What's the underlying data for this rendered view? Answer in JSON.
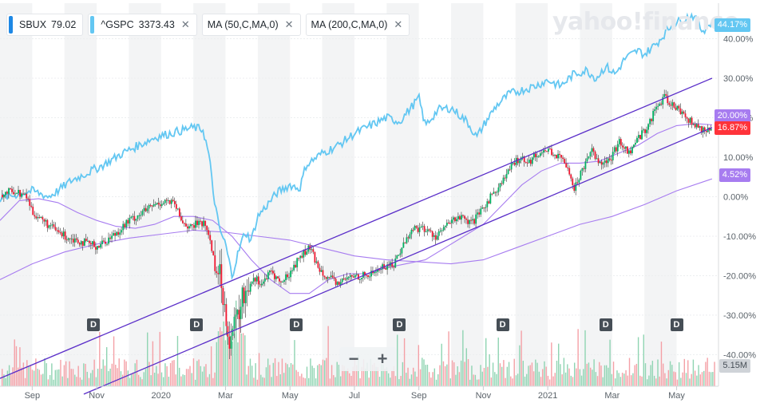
{
  "legend": [
    {
      "symbol": "SBUX",
      "value": "79.02",
      "color": "#1e88e5",
      "closable": false
    },
    {
      "symbol": "^GSPC",
      "value": "3373.43",
      "color": "#63c7f2",
      "closable": true
    },
    {
      "symbol": "MA (50,C,MA,0)",
      "value": "",
      "color": "",
      "closable": true
    },
    {
      "symbol": "MA (200,C,MA,0)",
      "value": "",
      "color": "",
      "closable": true
    }
  ],
  "watermark": "yahoo!finance",
  "badges": {
    "gspc": {
      "text": "44.17%",
      "color": "#63c7f2"
    },
    "sbux": {
      "text": "16.87%",
      "color": "#ff333a"
    },
    "ma_value_top": {
      "text": "20.00%",
      "color": "#a77cf0"
    },
    "ma200": {
      "text": "4.52%",
      "color": "#a77cf0"
    },
    "volume": {
      "text": "5.15M",
      "color": "#cfd3d8"
    }
  },
  "zoom": {
    "minus": "−",
    "plus": "+"
  },
  "dividend_marker": "D",
  "chart_data": {
    "type": "candlestick-percent-comparison",
    "yaxis": {
      "unit": "%",
      "ticks": [
        40,
        30,
        20,
        10,
        0,
        -10,
        -20,
        -30,
        -40
      ],
      "tick_labels": [
        "40.00%",
        "30.00%",
        "20.00%",
        "10.00%",
        "0.00%",
        "-10.00%",
        "-20.00%",
        "-30.00%",
        "-40.00%"
      ],
      "ylim": [
        -48,
        49
      ]
    },
    "xaxis": {
      "tick_labels": [
        "Sep",
        "Nov",
        "2020",
        "Mar",
        "May",
        "Jul",
        "Sep",
        "Nov",
        "2021",
        "Mar",
        "May"
      ],
      "tick_months": [
        1,
        3,
        5,
        7,
        9,
        11,
        13,
        15,
        17,
        19,
        21
      ],
      "range_months": [
        0,
        22.3
      ]
    },
    "shaded_bands_months": [
      [
        0,
        1
      ],
      [
        2,
        3
      ],
      [
        4,
        5
      ],
      [
        6,
        7
      ],
      [
        8,
        9
      ],
      [
        10,
        11
      ],
      [
        12,
        13
      ],
      [
        14,
        15
      ],
      [
        16,
        17
      ],
      [
        18,
        19
      ],
      [
        20,
        21
      ]
    ],
    "dividend_months": [
      2.9,
      6.1,
      9.2,
      12.4,
      15.6,
      18.8,
      21.0
    ],
    "series": [
      {
        "name": "^GSPC",
        "color": "#63c7f2",
        "kind": "line",
        "points": [
          [
            0,
            -0.5
          ],
          [
            0.5,
            0.5
          ],
          [
            1,
            1.5
          ],
          [
            1.5,
            0
          ],
          [
            1.8,
            1.5
          ],
          [
            2.2,
            4
          ],
          [
            2.7,
            6
          ],
          [
            3.2,
            8
          ],
          [
            3.8,
            11
          ],
          [
            4.3,
            13
          ],
          [
            4.8,
            15
          ],
          [
            5.5,
            16.5
          ],
          [
            6,
            17.5
          ],
          [
            6.3,
            17
          ],
          [
            6.5,
            10
          ],
          [
            6.6,
            2
          ],
          [
            6.8,
            -8
          ],
          [
            7.0,
            -12
          ],
          [
            7.2,
            -20
          ],
          [
            7.4,
            -14
          ],
          [
            7.6,
            -9
          ],
          [
            7.8,
            -11
          ],
          [
            8.0,
            -5
          ],
          [
            8.3,
            -2
          ],
          [
            8.6,
            1
          ],
          [
            9,
            3
          ],
          [
            9.3,
            2
          ],
          [
            9.5,
            8
          ],
          [
            10,
            11
          ],
          [
            10.5,
            13
          ],
          [
            11,
            16
          ],
          [
            11.5,
            18
          ],
          [
            12,
            20
          ],
          [
            12.4,
            19
          ],
          [
            12.8,
            23
          ],
          [
            13,
            25
          ],
          [
            13.2,
            18
          ],
          [
            13.6,
            22
          ],
          [
            14,
            22.5
          ],
          [
            14.5,
            19
          ],
          [
            14.8,
            15
          ],
          [
            15,
            18
          ],
          [
            15.4,
            23
          ],
          [
            15.8,
            26
          ],
          [
            16.2,
            27
          ],
          [
            16.6,
            28
          ],
          [
            17,
            29.5
          ],
          [
            17.4,
            28
          ],
          [
            17.8,
            31
          ],
          [
            18.2,
            32
          ],
          [
            18.5,
            30
          ],
          [
            18.8,
            33
          ],
          [
            19.1,
            31
          ],
          [
            19.4,
            35
          ],
          [
            19.8,
            37
          ],
          [
            20,
            36
          ],
          [
            20.4,
            39
          ],
          [
            20.8,
            43
          ],
          [
            21.2,
            45
          ],
          [
            21.5,
            46
          ],
          [
            21.8,
            42
          ],
          [
            22.1,
            44.17
          ]
        ]
      },
      {
        "name": "SBUX",
        "kind": "candles",
        "up_color": "#00b061",
        "down_color": "#f0162f",
        "points": [
          [
            0,
            0.5
          ],
          [
            0.4,
            1.5
          ],
          [
            0.8,
            0
          ],
          [
            1.0,
            -4
          ],
          [
            1.3,
            -6
          ],
          [
            1.6,
            -8
          ],
          [
            2.0,
            -10
          ],
          [
            2.4,
            -11
          ],
          [
            2.7,
            -12
          ],
          [
            3.0,
            -12.5
          ],
          [
            3.3,
            -11
          ],
          [
            3.6,
            -9
          ],
          [
            4.0,
            -6
          ],
          [
            4.4,
            -4
          ],
          [
            4.8,
            -2
          ],
          [
            5.1,
            -1
          ],
          [
            5.4,
            -2
          ],
          [
            5.6,
            -6
          ],
          [
            5.9,
            -8
          ],
          [
            6.2,
            -6
          ],
          [
            6.4,
            -8
          ],
          [
            6.6,
            -15
          ],
          [
            6.8,
            -20
          ],
          [
            7.0,
            -30
          ],
          [
            7.1,
            -36
          ],
          [
            7.3,
            -32
          ],
          [
            7.5,
            -26
          ],
          [
            7.8,
            -20
          ],
          [
            8.1,
            -22
          ],
          [
            8.4,
            -19
          ],
          [
            8.7,
            -22
          ],
          [
            9.0,
            -19
          ],
          [
            9.3,
            -15
          ],
          [
            9.6,
            -13
          ],
          [
            9.8,
            -17
          ],
          [
            10.1,
            -20
          ],
          [
            10.4,
            -22
          ],
          [
            10.7,
            -21
          ],
          [
            11.0,
            -20
          ],
          [
            11.4,
            -20
          ],
          [
            11.8,
            -18
          ],
          [
            12.2,
            -17
          ],
          [
            12.5,
            -12
          ],
          [
            12.8,
            -8
          ],
          [
            13.1,
            -8
          ],
          [
            13.5,
            -10
          ],
          [
            13.9,
            -7
          ],
          [
            14.2,
            -5
          ],
          [
            14.6,
            -7
          ],
          [
            14.9,
            -4
          ],
          [
            15.2,
            0
          ],
          [
            15.5,
            3
          ],
          [
            15.8,
            7
          ],
          [
            16.1,
            10
          ],
          [
            16.4,
            9
          ],
          [
            16.7,
            11
          ],
          [
            17.0,
            12
          ],
          [
            17.3,
            10
          ],
          [
            17.6,
            8
          ],
          [
            17.8,
            2
          ],
          [
            18.0,
            6
          ],
          [
            18.3,
            12
          ],
          [
            18.6,
            9
          ],
          [
            18.9,
            9
          ],
          [
            19.2,
            14
          ],
          [
            19.5,
            11
          ],
          [
            19.8,
            15
          ],
          [
            20.1,
            18
          ],
          [
            20.3,
            22
          ],
          [
            20.6,
            25
          ],
          [
            20.9,
            23
          ],
          [
            21.2,
            21
          ],
          [
            21.5,
            18
          ],
          [
            21.8,
            17
          ],
          [
            22.1,
            16.87
          ]
        ]
      },
      {
        "name": "MA (50,C,MA,0)",
        "color": "#a77cf0",
        "kind": "line",
        "points": [
          [
            0,
            -6
          ],
          [
            0.6,
            -1
          ],
          [
            1.2,
            -0.5
          ],
          [
            1.8,
            -1.5
          ],
          [
            2.4,
            -4
          ],
          [
            3,
            -6
          ],
          [
            3.6,
            -7.5
          ],
          [
            4.2,
            -8
          ],
          [
            4.8,
            -7
          ],
          [
            5.4,
            -5
          ],
          [
            6,
            -5
          ],
          [
            6.6,
            -6
          ],
          [
            7.2,
            -10
          ],
          [
            7.8,
            -16
          ],
          [
            8.4,
            -21
          ],
          [
            9,
            -24.5
          ],
          [
            9.6,
            -24.5
          ],
          [
            10.2,
            -21
          ],
          [
            10.8,
            -19.5
          ],
          [
            11.4,
            -19.5
          ],
          [
            12,
            -18
          ],
          [
            12.6,
            -17
          ],
          [
            13.2,
            -16
          ],
          [
            13.8,
            -13
          ],
          [
            14.4,
            -10
          ],
          [
            15,
            -7
          ],
          [
            15.6,
            -2
          ],
          [
            16.2,
            3
          ],
          [
            16.8,
            6.5
          ],
          [
            17.4,
            8.5
          ],
          [
            18,
            8.5
          ],
          [
            18.6,
            9
          ],
          [
            19.2,
            11
          ],
          [
            19.8,
            13
          ],
          [
            20.4,
            16
          ],
          [
            21,
            18
          ],
          [
            21.6,
            18.5
          ],
          [
            22.1,
            18.2
          ]
        ]
      },
      {
        "name": "MA (200,C,MA,0)",
        "color": "#a77cf0",
        "kind": "line",
        "points": [
          [
            0,
            -21
          ],
          [
            1,
            -17
          ],
          [
            2,
            -14
          ],
          [
            3,
            -12
          ],
          [
            4,
            -10.5
          ],
          [
            5,
            -9.5
          ],
          [
            6,
            -8.5
          ],
          [
            7,
            -9
          ],
          [
            8,
            -10
          ],
          [
            9,
            -11
          ],
          [
            10,
            -13
          ],
          [
            11,
            -15
          ],
          [
            12,
            -16
          ],
          [
            13,
            -16.5
          ],
          [
            14,
            -17
          ],
          [
            15,
            -16
          ],
          [
            16,
            -13
          ],
          [
            17,
            -10
          ],
          [
            18,
            -7
          ],
          [
            19,
            -5
          ],
          [
            20,
            -2
          ],
          [
            21,
            1.5
          ],
          [
            22.1,
            4.52
          ]
        ]
      },
      {
        "name": "channel-upper",
        "color": "#5b2fc9",
        "kind": "line",
        "points": [
          [
            0,
            -46
          ],
          [
            22.1,
            30
          ]
        ]
      },
      {
        "name": "channel-lower",
        "color": "#5b2fc9",
        "kind": "line",
        "points": [
          [
            2.6,
            -50
          ],
          [
            22.1,
            17.5
          ]
        ]
      }
    ]
  }
}
